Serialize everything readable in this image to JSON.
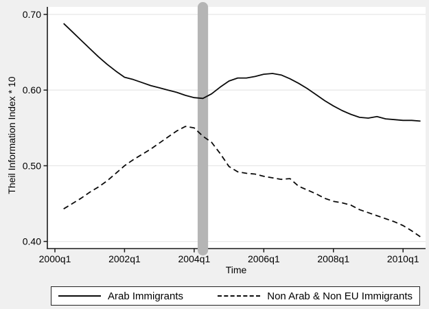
{
  "figure": {
    "background_color": "#f0f0f0",
    "plot_background_color": "#ffffff",
    "gridline_color": "#e8e8e8",
    "axis_color": "#1a1a1a",
    "line_color": "#0a0a0a",
    "band_color": "#b5b5b5"
  },
  "chart_data": {
    "type": "line",
    "title": "",
    "xlabel": "Time",
    "ylabel": "Theil Information Index * 10",
    "ylim": [
      0.4,
      0.7
    ],
    "grid": "horizontal",
    "legend_position": "bottom",
    "x_tick_labels": [
      "2000q1",
      "2002q1",
      "2004q1",
      "2006q1",
      "2008q1",
      "2010q1"
    ],
    "y_tick_labels": [
      "0.70",
      "0.60",
      "0.50",
      "0.40"
    ],
    "highlight_band": {
      "center_quarter": "2004q2",
      "width_quarters": 1.2,
      "note": "vertical gray band"
    },
    "x": [
      "2000q2",
      "2000q3",
      "2000q4",
      "2001q1",
      "2001q2",
      "2001q3",
      "2001q4",
      "2002q1",
      "2002q2",
      "2002q3",
      "2002q4",
      "2003q1",
      "2003q2",
      "2003q3",
      "2003q4",
      "2004q1",
      "2004q2",
      "2004q3",
      "2004q4",
      "2005q1",
      "2005q2",
      "2005q3",
      "2005q4",
      "2006q1",
      "2006q2",
      "2006q3",
      "2006q4",
      "2007q1",
      "2007q2",
      "2007q3",
      "2007q4",
      "2008q1",
      "2008q2",
      "2008q3",
      "2008q4",
      "2009q1",
      "2009q2",
      "2009q3",
      "2009q4",
      "2010q1",
      "2010q2",
      "2010q3"
    ],
    "series": [
      {
        "name": "Arab Immigrants",
        "style": "solid",
        "values": [
          0.688,
          0.677,
          0.666,
          0.655,
          0.644,
          0.634,
          0.625,
          0.617,
          0.614,
          0.61,
          0.606,
          0.603,
          0.6,
          0.597,
          0.593,
          0.59,
          0.589,
          0.595,
          0.604,
          0.612,
          0.616,
          0.616,
          0.618,
          0.621,
          0.622,
          0.62,
          0.615,
          0.609,
          0.602,
          0.594,
          0.586,
          0.579,
          0.573,
          0.568,
          0.564,
          0.563,
          0.565,
          0.562,
          0.561,
          0.56,
          0.56,
          0.559
        ]
      },
      {
        "name": "Non Arab & Non EU Immigrants",
        "style": "dashed",
        "values": [
          0.443,
          0.45,
          0.457,
          0.465,
          0.472,
          0.48,
          0.49,
          0.5,
          0.508,
          0.515,
          0.522,
          0.53,
          0.538,
          0.546,
          0.552,
          0.55,
          0.539,
          0.531,
          0.516,
          0.499,
          0.492,
          0.49,
          0.489,
          0.486,
          0.484,
          0.482,
          0.483,
          0.473,
          0.468,
          0.463,
          0.457,
          0.453,
          0.451,
          0.448,
          0.442,
          0.438,
          0.434,
          0.43,
          0.426,
          0.421,
          0.414,
          0.406
        ]
      }
    ]
  }
}
